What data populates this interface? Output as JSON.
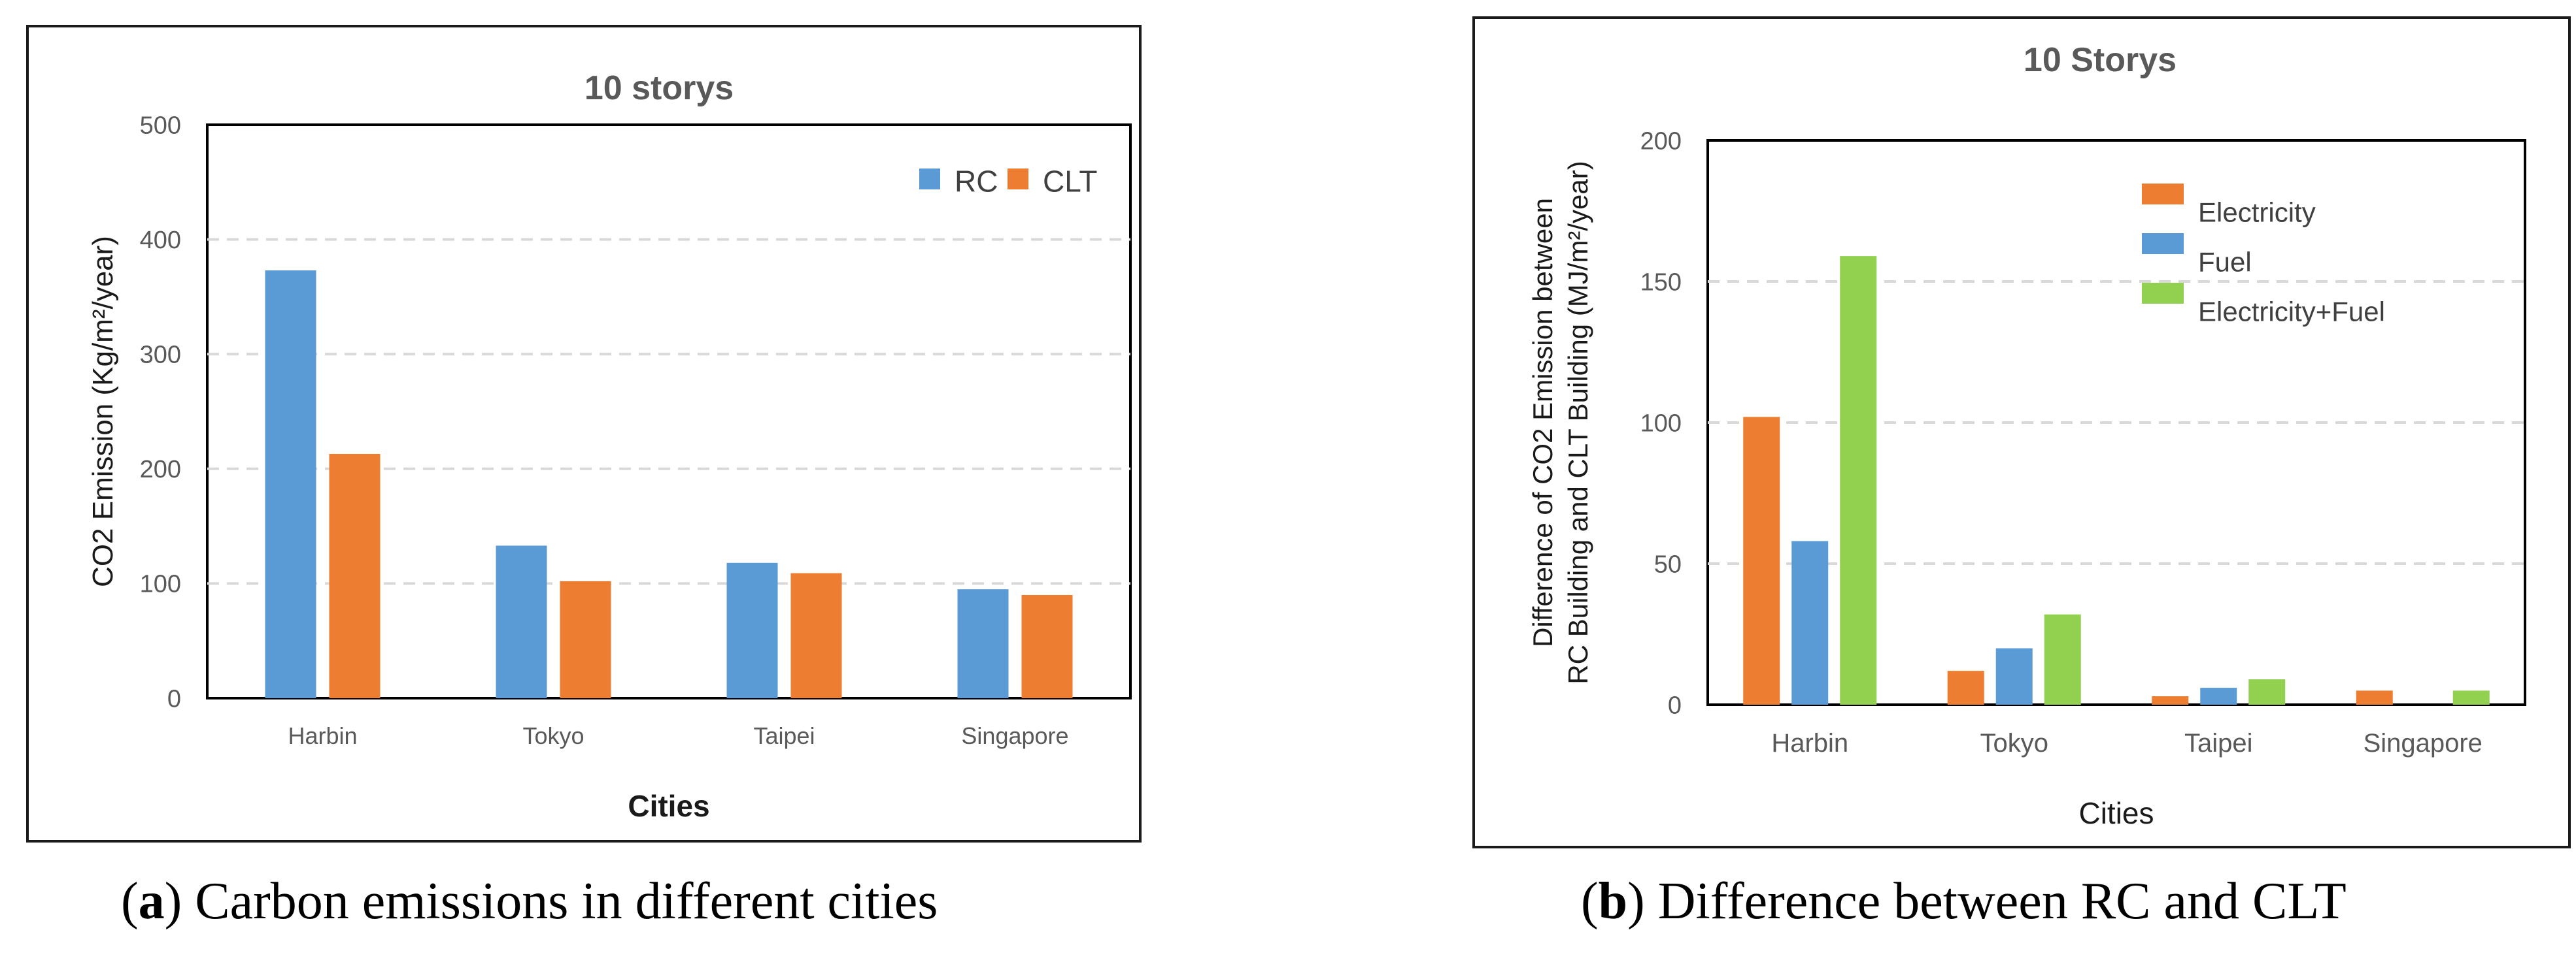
{
  "chart_data": [
    {
      "type": "bar",
      "title": "10 storys",
      "xlabel": "Cities",
      "ylabel": "CO2 Emission (Kg/m²/year)",
      "categories": [
        "Harbin",
        "Tokyo",
        "Taipei",
        "Singapore"
      ],
      "ylim": [
        0,
        500
      ],
      "yticks": [
        0,
        100,
        200,
        300,
        400,
        500
      ],
      "grid": true,
      "legend": "top-right",
      "series": [
        {
          "name": "RC",
          "color": "#5B9BD5",
          "values": [
            373,
            133,
            118,
            95
          ]
        },
        {
          "name": "CLT",
          "color": "#ED7D31",
          "values": [
            213,
            102,
            109,
            90
          ]
        }
      ]
    },
    {
      "type": "bar",
      "title": "10 Storys",
      "xlabel": "Cities",
      "ylabel": [
        "Difference of CO2 Emission between",
        "RC Building and CLT Building (MJ/m²/year)"
      ],
      "categories": [
        "Harbin",
        "Tokyo",
        "Taipei",
        "Singapore"
      ],
      "ylim": [
        0,
        200
      ],
      "yticks": [
        0,
        50,
        100,
        150,
        200
      ],
      "grid": true,
      "legend": "top-right",
      "series": [
        {
          "name": "Electricity",
          "color": "#ED7D31",
          "values": [
            102,
            12,
            3,
            5
          ]
        },
        {
          "name": "Fuel",
          "color": "#5B9BD5",
          "values": [
            58,
            20,
            6,
            0
          ]
        },
        {
          "name": "Electricity+Fuel",
          "color": "#92D050",
          "values": [
            159,
            32,
            9,
            5
          ]
        }
      ]
    }
  ],
  "captions": [
    {
      "label": "a",
      "text": ") Carbon emissions in different cities"
    },
    {
      "label": "b",
      "text": ") Difference between RC and CLT"
    }
  ]
}
